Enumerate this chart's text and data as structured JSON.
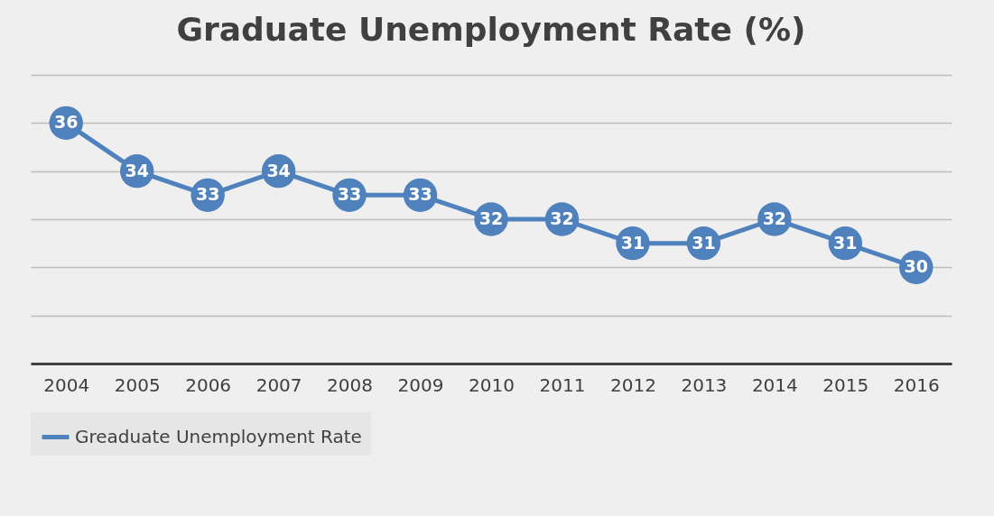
{
  "chart_data": {
    "type": "line",
    "title": "Graduate Unemployment Rate (%)",
    "categories": [
      "2004",
      "2005",
      "2006",
      "2007",
      "2008",
      "2009",
      "2010",
      "2011",
      "2012",
      "2013",
      "2014",
      "2015",
      "2016"
    ],
    "series": [
      {
        "name": "Greaduate Unemployment Rate",
        "color": "#4f81bd",
        "values": [
          36,
          34,
          33,
          34,
          33,
          33,
          32,
          32,
          31,
          31,
          32,
          31,
          30
        ]
      }
    ],
    "ylim": [
      26,
      38
    ],
    "yticks": [
      {
        "value": 26,
        "label": null
      },
      {
        "value": 28,
        "label": null
      },
      {
        "value": 30,
        "label": null
      },
      {
        "value": 32,
        "label": null
      },
      {
        "value": 34,
        "label": null
      },
      {
        "value": 36,
        "label": null
      },
      {
        "value": 38,
        "label": null
      }
    ],
    "grid": "y",
    "legend": "bottom",
    "marker": "circle",
    "data_labels": true,
    "tick_labels": "x"
  }
}
